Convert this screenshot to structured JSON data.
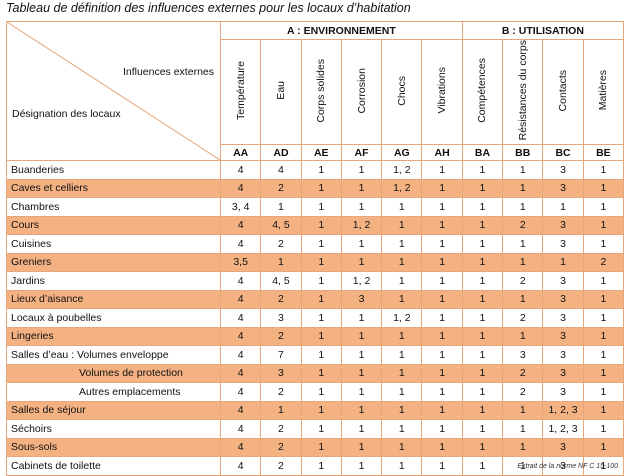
{
  "title": "Tableau de définition des influences externes pour les locaux d’habitation",
  "footnote": "Extrait de la norme NF C 15-100",
  "corner": {
    "top_label": "Influences externes",
    "bottom_label": "Désignation des locaux"
  },
  "groups": [
    {
      "label": "A : ENVIRONNEMENT",
      "span": 6
    },
    {
      "label": "B : UTILISATION",
      "span": 4
    }
  ],
  "columns": [
    {
      "name": "Température",
      "code": "AA"
    },
    {
      "name": "Eau",
      "code": "AD"
    },
    {
      "name": "Corps solides",
      "code": "AE"
    },
    {
      "name": "Corrosion",
      "code": "AF"
    },
    {
      "name": "Chocs",
      "code": "AG"
    },
    {
      "name": "Vibrations",
      "code": "AH"
    },
    {
      "name": "Compétences",
      "code": "BA"
    },
    {
      "name": "Résistances du corps",
      "code": "BB"
    },
    {
      "name": "Contacts",
      "code": "BC"
    },
    {
      "name": "Matières",
      "code": "BE"
    }
  ],
  "rows": [
    {
      "name": "Buanderies",
      "highlight": false,
      "indent": false,
      "values": [
        "4",
        "4",
        "1",
        "1",
        "1, 2",
        "1",
        "1",
        "1",
        "3",
        "1"
      ]
    },
    {
      "name": "Caves et celliers",
      "highlight": true,
      "indent": false,
      "values": [
        "4",
        "2",
        "1",
        "1",
        "1, 2",
        "1",
        "1",
        "1",
        "3",
        "1"
      ]
    },
    {
      "name": "Chambres",
      "highlight": false,
      "indent": false,
      "values": [
        "3, 4",
        "1",
        "1",
        "1",
        "1",
        "1",
        "1",
        "1",
        "1",
        "1"
      ]
    },
    {
      "name": "Cours",
      "highlight": true,
      "indent": false,
      "values": [
        "4",
        "4, 5",
        "1",
        "1, 2",
        "1",
        "1",
        "1",
        "2",
        "3",
        "1"
      ]
    },
    {
      "name": "Cuisines",
      "highlight": false,
      "indent": false,
      "values": [
        "4",
        "2",
        "1",
        "1",
        "1",
        "1",
        "1",
        "1",
        "3",
        "1"
      ]
    },
    {
      "name": "Greniers",
      "highlight": true,
      "indent": false,
      "values": [
        "3,5",
        "1",
        "1",
        "1",
        "1",
        "1",
        "1",
        "1",
        "1",
        "2"
      ]
    },
    {
      "name": "Jardins",
      "highlight": false,
      "indent": false,
      "values": [
        "4",
        "4, 5",
        "1",
        "1, 2",
        "1",
        "1",
        "1",
        "2",
        "3",
        "1"
      ]
    },
    {
      "name": "Lieux d’aisance",
      "highlight": true,
      "indent": false,
      "values": [
        "4",
        "2",
        "1",
        "3",
        "1",
        "1",
        "1",
        "1",
        "3",
        "1"
      ]
    },
    {
      "name": "Locaux à poubelles",
      "highlight": false,
      "indent": false,
      "values": [
        "4",
        "3",
        "1",
        "1",
        "1, 2",
        "1",
        "1",
        "2",
        "3",
        "1"
      ]
    },
    {
      "name": "Lingeries",
      "highlight": true,
      "indent": false,
      "values": [
        "4",
        "2",
        "1",
        "1",
        "1",
        "1",
        "1",
        "1",
        "3",
        "1"
      ]
    },
    {
      "name": "Salles d’eau : Volumes enveloppe",
      "highlight": false,
      "indent": false,
      "values": [
        "4",
        "7",
        "1",
        "1",
        "1",
        "1",
        "1",
        "3",
        "3",
        "1"
      ]
    },
    {
      "name": "Volumes de protection",
      "highlight": true,
      "indent": true,
      "values": [
        "4",
        "3",
        "1",
        "1",
        "1",
        "1",
        "1",
        "2",
        "3",
        "1"
      ]
    },
    {
      "name": "Autres emplacements",
      "highlight": false,
      "indent": true,
      "values": [
        "4",
        "2",
        "1",
        "1",
        "1",
        "1",
        "1",
        "2",
        "3",
        "1"
      ]
    },
    {
      "name": "Salles de séjour",
      "highlight": true,
      "indent": false,
      "values": [
        "4",
        "1",
        "1",
        "1",
        "1",
        "1",
        "1",
        "1",
        "1, 2, 3",
        "1"
      ]
    },
    {
      "name": "Séchoirs",
      "highlight": false,
      "indent": false,
      "values": [
        "4",
        "2",
        "1",
        "1",
        "1",
        "1",
        "1",
        "1",
        "1, 2, 3",
        "1"
      ]
    },
    {
      "name": "Sous-sols",
      "highlight": true,
      "indent": false,
      "values": [
        "4",
        "2",
        "1",
        "1",
        "1",
        "1",
        "1",
        "1",
        "3",
        "1"
      ]
    },
    {
      "name": "Cabinets de toilette",
      "highlight": false,
      "indent": false,
      "values": [
        "4",
        "2",
        "1",
        "1",
        "1",
        "1",
        "1",
        "1",
        "3",
        "1"
      ]
    }
  ]
}
